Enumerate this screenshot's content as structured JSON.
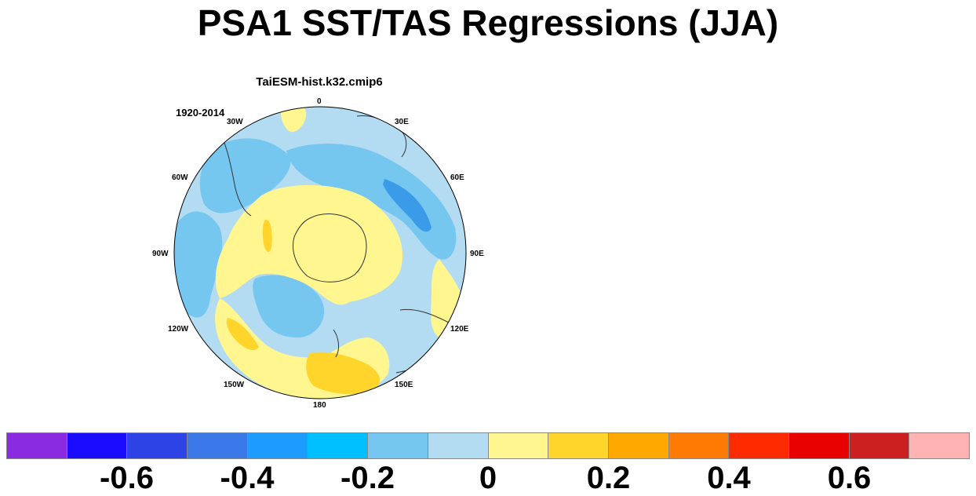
{
  "title": "PSA1 SST/TAS Regressions (JJA)",
  "panel": {
    "model": "TaiESM-hist.k32.cmip6",
    "period": "1920-2014",
    "projection": "south-polar-stereographic",
    "longitude_labels": {
      "lon_0": "0",
      "lon_30e": "30E",
      "lon_60e": "60E",
      "lon_90e": "90E",
      "lon_120e": "120E",
      "lon_150e": "150E",
      "lon_180": "180",
      "lon_150w": "150W",
      "lon_120w": "120W",
      "lon_90w": "90W",
      "lon_60w": "60W",
      "lon_30w": "30W"
    }
  },
  "colorbar": {
    "colors": [
      "#8a2be2",
      "#1a0dff",
      "#2d43e6",
      "#3a78e8",
      "#1e9bff",
      "#00bfff",
      "#75c7f0",
      "#b3dcf2",
      "#fff68f",
      "#ffd42b",
      "#ffa800",
      "#ff7a00",
      "#ff2a00",
      "#e60000",
      "#cc1f1f",
      "#ffb3b3"
    ],
    "tick_labels": [
      "-0.6",
      "-0.4",
      "-0.2",
      "0",
      "0.2",
      "0.4",
      "0.6"
    ]
  }
}
